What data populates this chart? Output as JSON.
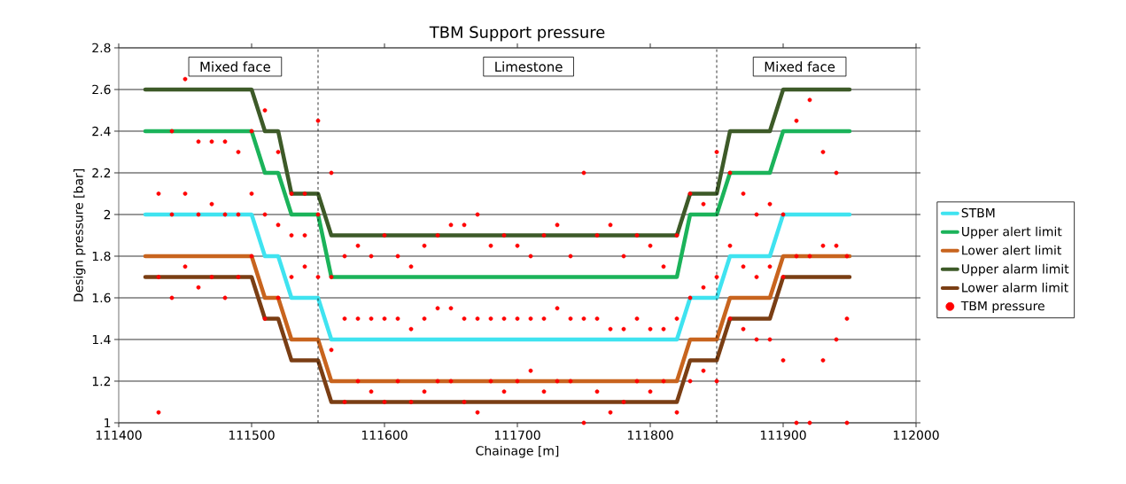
{
  "chart_data": {
    "type": "line",
    "title": "TBM Support pressure",
    "xlabel": "Chainage [m]",
    "ylabel": "Design pressure [bar]",
    "xlim": [
      111400,
      112000
    ],
    "xticks": [
      111400,
      111500,
      111600,
      111700,
      111800,
      111900,
      112000
    ],
    "ylim": [
      1,
      2.8
    ],
    "yticks": [
      1,
      1.2,
      1.4,
      1.6,
      1.8,
      2,
      2.2,
      2.4,
      2.6,
      2.8
    ],
    "grid": "y",
    "legend": "right",
    "x": [
      111420,
      111500,
      111510,
      111520,
      111530,
      111550,
      111560,
      111820,
      111830,
      111850,
      111860,
      111890,
      111900,
      111950
    ],
    "series": [
      {
        "name": "STBM",
        "color": "#3fe3f0",
        "values": [
          2.0,
          2.0,
          1.8,
          1.8,
          1.6,
          1.6,
          1.4,
          1.4,
          1.6,
          1.6,
          1.8,
          1.8,
          2.0,
          2.0
        ]
      },
      {
        "name": "Upper alert limit",
        "color": "#1bb35a",
        "values": [
          2.4,
          2.4,
          2.2,
          2.2,
          2.0,
          2.0,
          1.7,
          1.7,
          2.0,
          2.0,
          2.2,
          2.2,
          2.4,
          2.4
        ]
      },
      {
        "name": "Lower alert limit",
        "color": "#c8641e",
        "values": [
          1.8,
          1.8,
          1.6,
          1.6,
          1.4,
          1.4,
          1.2,
          1.2,
          1.4,
          1.4,
          1.6,
          1.6,
          1.8,
          1.8
        ]
      },
      {
        "name": "Upper alarm limit",
        "color": "#3d5a28",
        "values": [
          2.6,
          2.6,
          2.4,
          2.4,
          2.1,
          2.1,
          1.9,
          1.9,
          2.1,
          2.1,
          2.4,
          2.4,
          2.6,
          2.6
        ]
      },
      {
        "name": "Lower alarm limit",
        "color": "#7a3e14",
        "values": [
          1.7,
          1.7,
          1.5,
          1.5,
          1.3,
          1.3,
          1.1,
          1.1,
          1.3,
          1.3,
          1.5,
          1.5,
          1.7,
          1.7
        ]
      },
      {
        "name": "TBM pressure",
        "type": "scatter",
        "color": "#ff0000",
        "x": [
          111430,
          111430,
          111430,
          111440,
          111440,
          111440,
          111450,
          111450,
          111450,
          111460,
          111460,
          111460,
          111470,
          111470,
          111470,
          111480,
          111480,
          111480,
          111490,
          111490,
          111490,
          111500,
          111500,
          111500,
          111510,
          111510,
          111510,
          111520,
          111520,
          111520,
          111530,
          111530,
          111530,
          111540,
          111540,
          111540,
          111550,
          111550,
          111550,
          111560,
          111560,
          111560,
          111570,
          111570,
          111570,
          111580,
          111580,
          111580,
          111590,
          111590,
          111590,
          111600,
          111600,
          111600,
          111610,
          111610,
          111610,
          111620,
          111620,
          111620,
          111630,
          111630,
          111630,
          111640,
          111640,
          111640,
          111650,
          111650,
          111650,
          111660,
          111660,
          111660,
          111670,
          111670,
          111670,
          111680,
          111680,
          111680,
          111690,
          111690,
          111690,
          111700,
          111700,
          111700,
          111710,
          111710,
          111710,
          111720,
          111720,
          111720,
          111730,
          111730,
          111730,
          111740,
          111740,
          111740,
          111750,
          111750,
          111750,
          111760,
          111760,
          111760,
          111770,
          111770,
          111770,
          111780,
          111780,
          111780,
          111790,
          111790,
          111790,
          111800,
          111800,
          111800,
          111810,
          111810,
          111810,
          111820,
          111820,
          111820,
          111830,
          111830,
          111830,
          111840,
          111840,
          111840,
          111850,
          111850,
          111850,
          111860,
          111860,
          111860,
          111870,
          111870,
          111870,
          111880,
          111880,
          111880,
          111890,
          111890,
          111890,
          111900,
          111900,
          111900,
          111910,
          111910,
          111910,
          111920,
          111920,
          111920,
          111930,
          111930,
          111930,
          111940,
          111940,
          111940,
          111948,
          111948,
          111948
        ],
        "values": [
          1.05,
          1.7,
          2.1,
          1.6,
          2.0,
          2.4,
          1.75,
          2.1,
          2.65,
          1.65,
          2.0,
          2.35,
          1.7,
          2.05,
          2.35,
          1.6,
          2.0,
          2.35,
          1.7,
          2.0,
          2.3,
          1.8,
          2.1,
          2.4,
          1.5,
          2.0,
          2.5,
          1.6,
          1.95,
          2.3,
          1.7,
          1.9,
          2.1,
          1.75,
          1.9,
          2.1,
          1.7,
          2.0,
          2.45,
          1.35,
          1.7,
          2.2,
          1.1,
          1.5,
          1.8,
          1.2,
          1.5,
          1.85,
          1.15,
          1.5,
          1.8,
          1.1,
          1.5,
          1.9,
          1.2,
          1.5,
          1.8,
          1.1,
          1.45,
          1.75,
          1.15,
          1.5,
          1.85,
          1.2,
          1.55,
          1.9,
          1.2,
          1.55,
          1.95,
          1.1,
          1.5,
          1.95,
          1.05,
          1.5,
          2.0,
          1.2,
          1.5,
          1.85,
          1.15,
          1.5,
          1.9,
          1.2,
          1.5,
          1.85,
          1.25,
          1.5,
          1.8,
          1.15,
          1.5,
          1.9,
          1.2,
          1.55,
          1.95,
          1.2,
          1.5,
          1.8,
          1.0,
          1.5,
          2.2,
          1.15,
          1.5,
          1.9,
          1.05,
          1.45,
          1.95,
          1.1,
          1.45,
          1.8,
          1.2,
          1.5,
          1.9,
          1.15,
          1.45,
          1.85,
          1.2,
          1.45,
          1.75,
          1.05,
          1.5,
          1.9,
          1.2,
          1.6,
          2.1,
          1.25,
          1.65,
          2.05,
          1.2,
          1.7,
          2.3,
          1.5,
          1.85,
          2.2,
          1.45,
          1.75,
          2.1,
          1.4,
          1.7,
          2.0,
          1.4,
          1.75,
          2.05,
          1.3,
          1.7,
          2.0,
          1.0,
          1.8,
          2.45,
          1.0,
          1.8,
          2.55,
          1.3,
          1.85,
          2.3,
          1.4,
          1.85,
          2.2,
          1.0,
          1.5,
          1.8
        ]
      }
    ],
    "ref_lines": [
      {
        "axis": "x",
        "value": 111550,
        "line_style": "dashed",
        "color": "#000000"
      },
      {
        "axis": "x",
        "value": 111850,
        "line_style": "dashed",
        "color": "#000000"
      }
    ],
    "annotations": [
      "Mixed face",
      "Limestone",
      "Mixed face"
    ]
  }
}
